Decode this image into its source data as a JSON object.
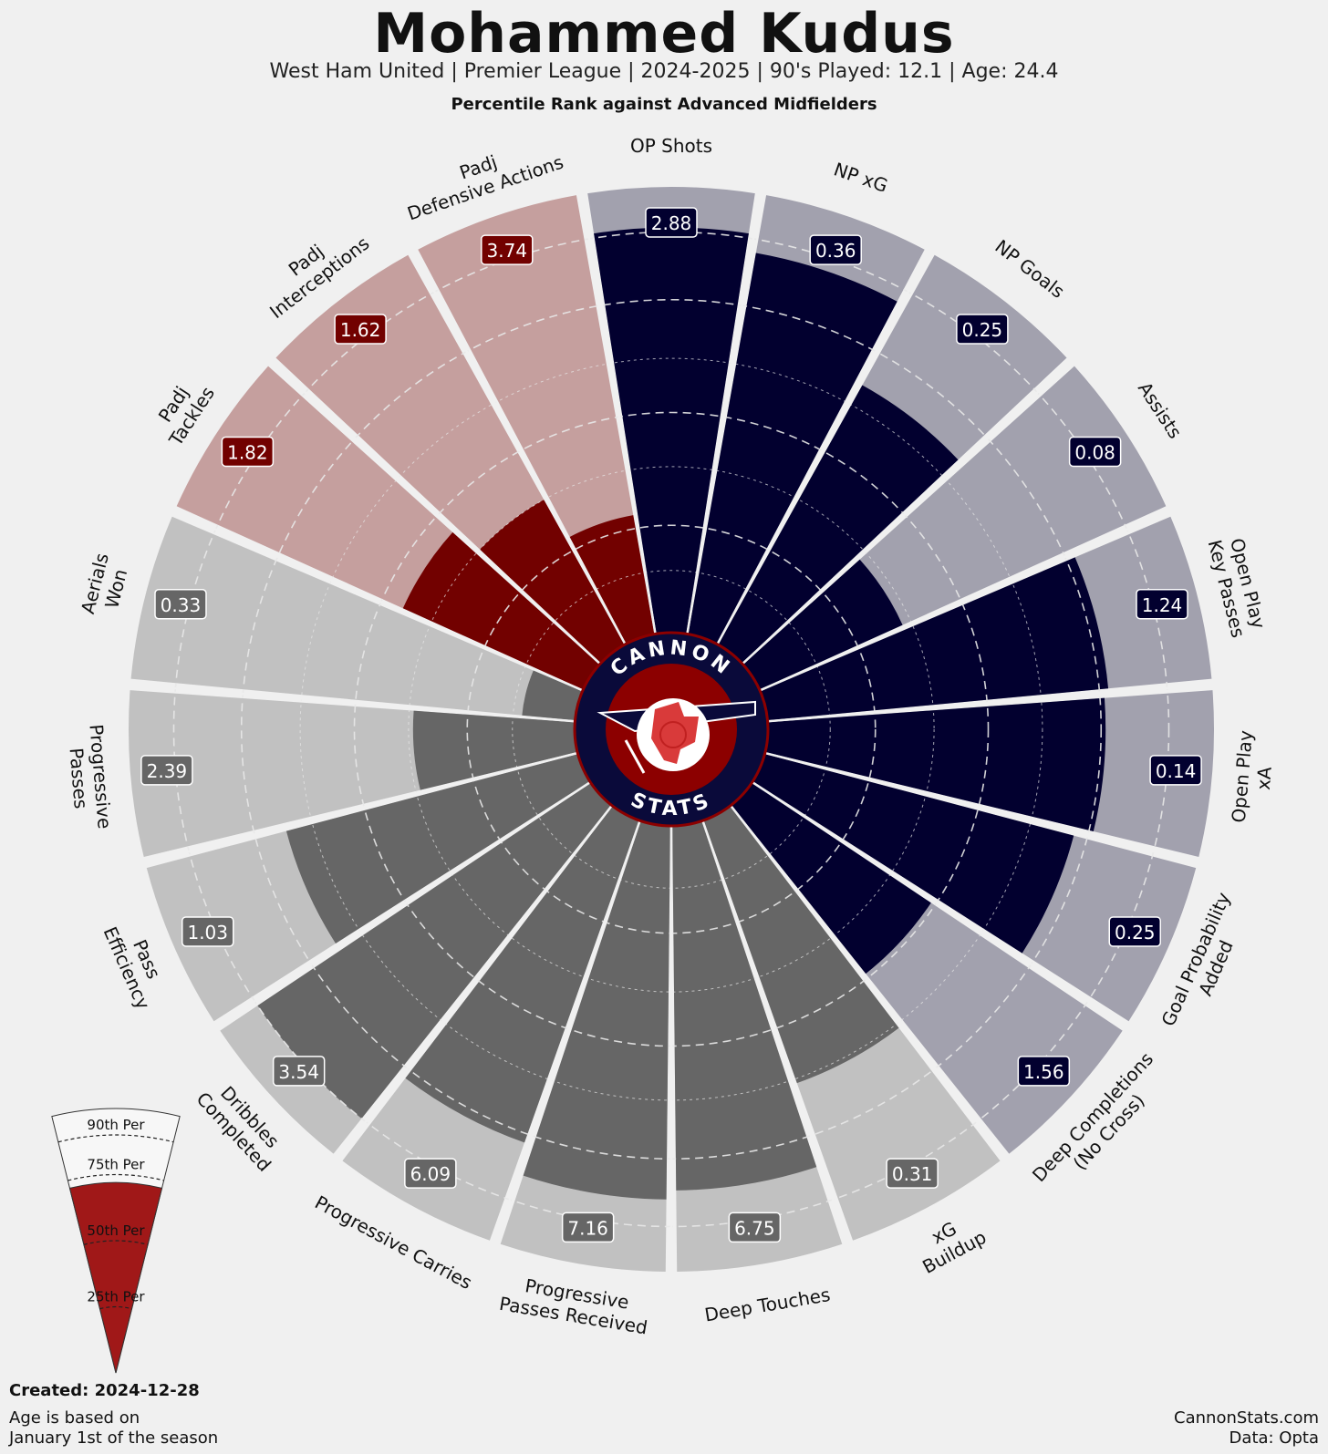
{
  "header": {
    "title": "Mohammed Kudus",
    "subtitle": "West Ham United  | Premier League | 2024-2025 | 90's Played: 12.1 | Age: 24.4",
    "caption": "Percentile Rank against Advanced Midfielders"
  },
  "footer": {
    "created": "Created: 2024-12-28",
    "note_line1": "Age is based on",
    "note_line2": "January 1st of the season",
    "site": "CannonStats.com",
    "source": "Data: Opta"
  },
  "logo": {
    "top_text": "CANNON",
    "bottom_text": "STATS"
  },
  "legend": {
    "labels": [
      "90th Per",
      "75th Per",
      "50th Per",
      "25th Per"
    ],
    "example_percentile": 0.72
  },
  "colors": {
    "background": "#f0f0f0",
    "attacking": "#02002f",
    "attacking_bg": "#a2a1ae",
    "defending": "#720100",
    "defending_bg": "#c59f9e",
    "possession": "#666666",
    "possession_bg": "#c1c1c1",
    "logo_navy": "#0a0a3a",
    "logo_red": "#8c0000",
    "legend_red": "#a01818"
  },
  "chart_data": {
    "type": "radar-bar",
    "title": "Mohammed Kudus",
    "subtitle": "Percentile Rank against Advanced Midfielders",
    "scale": [
      0,
      100
    ],
    "gridlines": [
      25,
      50,
      75,
      90
    ],
    "categories": [
      {
        "name": "OP Shots",
        "value": "2.88",
        "percentile": 91,
        "group": "attacking"
      },
      {
        "name": "NP xG",
        "value": "0.36",
        "percentile": 87,
        "group": "attacking"
      },
      {
        "name": "NP Goals",
        "value": "0.25",
        "percentile": 67,
        "group": "attacking"
      },
      {
        "name": "Assists",
        "value": "0.08",
        "percentile": 36,
        "group": "attacking"
      },
      {
        "name": "Open Play\nKey Passes",
        "value": "1.24",
        "percentile": 77,
        "group": "attacking"
      },
      {
        "name": "Open Play\nxA",
        "value": "0.14",
        "percentile": 76,
        "group": "attacking"
      },
      {
        "name": "Goal Probability\nAdded",
        "value": "0.25",
        "percentile": 72,
        "group": "attacking"
      },
      {
        "name": "Deep Completions\n(No Cross)",
        "value": "1.56",
        "percentile": 49,
        "group": "attacking"
      },
      {
        "name": "xG\nBuildup",
        "value": "0.31",
        "percentile": 63,
        "group": "possession"
      },
      {
        "name": "Deep Touches",
        "value": "6.75",
        "percentile": 82,
        "group": "possession"
      },
      {
        "name": "Progressive\nPasses Received",
        "value": "7.16",
        "percentile": 84,
        "group": "possession"
      },
      {
        "name": "Progressive Carries",
        "value": "6.09",
        "percentile": 77,
        "group": "possession"
      },
      {
        "name": "Dribbles\nCompleted",
        "value": "3.54",
        "percentile": 90,
        "group": "possession"
      },
      {
        "name": "Pass\nEfficiency",
        "value": "1.03",
        "percentile": 68,
        "group": "possession"
      },
      {
        "name": "Progressive\nPasses",
        "value": "2.39",
        "percentile": 37,
        "group": "possession"
      },
      {
        "name": "Aerials\nWon",
        "value": "0.33",
        "percentile": 13,
        "group": "possession"
      },
      {
        "name": "Padj\nTackles",
        "value": "1.82",
        "percentile": 45,
        "group": "defending"
      },
      {
        "name": "Padj\nInterceptions",
        "value": "1.62",
        "percentile": 38,
        "group": "defending"
      },
      {
        "name": "Padj\nDefensive Actions",
        "value": "3.74",
        "percentile": 28,
        "group": "defending"
      }
    ]
  }
}
